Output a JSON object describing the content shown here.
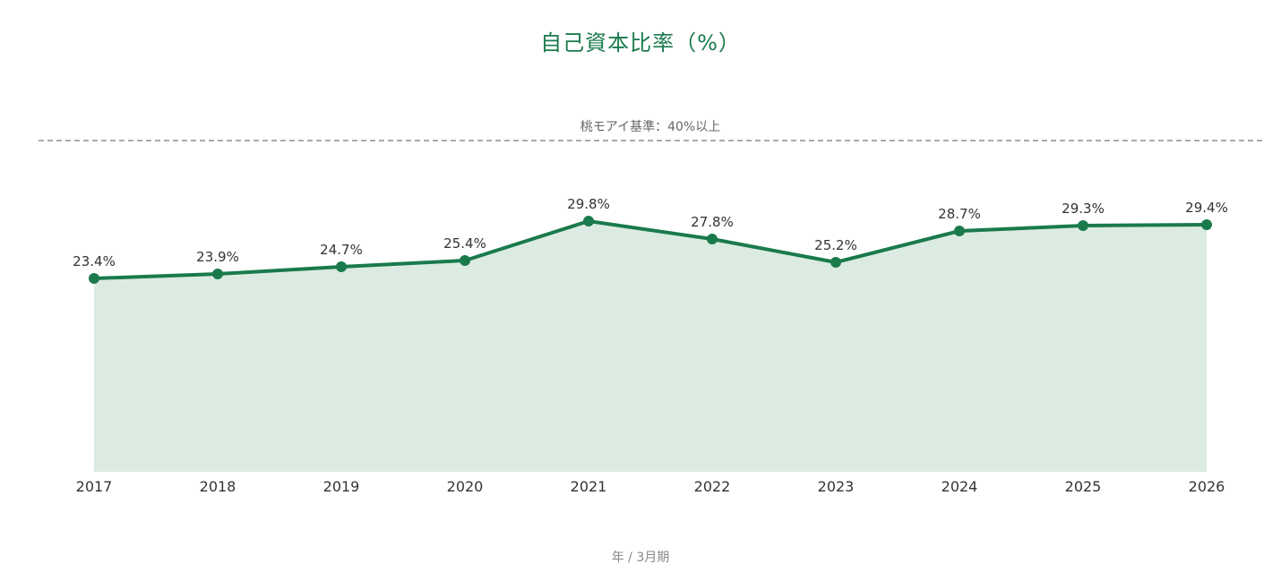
{
  "chart_data": {
    "type": "area",
    "title": "自己資本比率（%）",
    "xlabel": "年 / 3月期",
    "ylabel": "",
    "categories": [
      "2017",
      "2018",
      "2019",
      "2020",
      "2021",
      "2022",
      "2023",
      "2024",
      "2025",
      "2026"
    ],
    "values": [
      23.4,
      23.9,
      24.7,
      25.4,
      29.8,
      27.8,
      25.2,
      28.7,
      29.3,
      29.4
    ],
    "data_labels": [
      "23.4%",
      "23.9%",
      "24.7%",
      "25.4%",
      "29.8%",
      "27.8%",
      "25.2%",
      "28.7%",
      "29.3%",
      "29.4%"
    ],
    "ylim": [
      0,
      40
    ],
    "reference_line": {
      "value": 40,
      "label": "桃モアイ基準：40%以上",
      "style": "dashed"
    },
    "grid": false,
    "legend": "none",
    "colors": {
      "line": "#1a7a4c",
      "area": "#dbebe2",
      "reference": "#aaaaaa",
      "title": "#1a7a4c"
    }
  }
}
